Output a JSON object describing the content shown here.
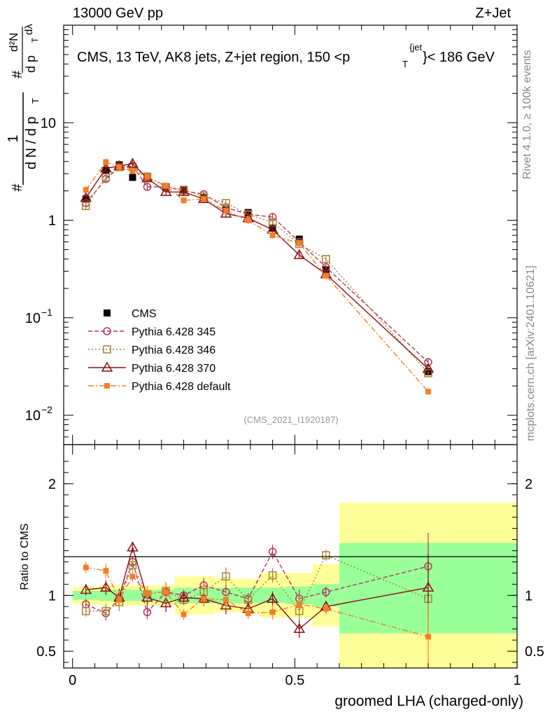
{
  "header": {
    "left": "13000 GeV pp",
    "right": "Z+Jet"
  },
  "side_labels": {
    "rivet": "Rivet 4.1.0, ≥ 100k events",
    "mcplots": "mcplots.cern.ch [arXiv:2401.10621]"
  },
  "watermark": "(CMS_2021_I1920187)",
  "colors": {
    "cms": "#000000",
    "p345": "#b2375b",
    "p346": "#a88433",
    "p370": "#8b0f16",
    "pdef": "#f57d29",
    "band_inner": "#99ff99",
    "band_outer": "#ffff99"
  },
  "chart_data": [
    {
      "type": "scatter",
      "title": "CMS, 13 TeV, AK8 jets, Z+jet region, 150 <p_T^{jet}< 186 GeV",
      "title_parts": {
        "pre": "CMS, 13 TeV, AK8 jets, Z+jet region, 150 <p",
        "sub": "T",
        "sup": "{jet",
        "post": "}< 186 GeV"
      },
      "ylabel": "1/(dN/dp_T) d²N/(dp_T dλ)",
      "ylabel_parts": {
        "hash": "#",
        "one": "1",
        "den": "d N / d p",
        "sub": "T",
        "num": "d²N",
        "den2": "d p",
        "sub2": "T",
        "dl": "dλ"
      },
      "yscale": "log",
      "ylim": [
        0.005,
        100
      ],
      "yticks": [
        {
          "v": 0.01,
          "base": "10",
          "exp": "−2"
        },
        {
          "v": 0.1,
          "base": "10",
          "exp": "−1"
        },
        {
          "v": 1,
          "label": "1"
        },
        {
          "v": 10,
          "label": "10"
        }
      ],
      "xlim": [
        -0.02,
        1.0
      ],
      "x": [
        0.03,
        0.075,
        0.105,
        0.135,
        0.168,
        0.21,
        0.25,
        0.295,
        0.345,
        0.395,
        0.45,
        0.51,
        0.57,
        0.8
      ],
      "series": [
        {
          "name": "CMS",
          "values": [
            1.65,
            3.25,
            3.7,
            2.75,
            2.75,
            2.15,
            2.05,
            1.7,
            1.3,
            1.2,
            0.83,
            0.64,
            0.31,
            0.028
          ]
        },
        {
          "name": "Pythia 6.428 345",
          "values": [
            1.5,
            2.65,
            3.5,
            3.6,
            2.2,
            2.2,
            2.0,
            1.85,
            1.35,
            1.15,
            1.08,
            0.6,
            0.33,
            0.035
          ]
        },
        {
          "name": "Pythia 6.428 346",
          "values": [
            1.4,
            2.75,
            3.5,
            3.5,
            2.8,
            2.2,
            2.05,
            1.75,
            1.5,
            1.15,
            0.95,
            0.57,
            0.4,
            0.027
          ]
        },
        {
          "name": "Pythia 6.428 370",
          "values": [
            1.7,
            3.4,
            3.6,
            3.8,
            2.7,
            1.95,
            1.95,
            1.65,
            1.17,
            1.05,
            0.8,
            0.44,
            0.28,
            0.03
          ]
        },
        {
          "name": "Pythia 6.428 default",
          "values": [
            2.05,
            3.95,
            3.5,
            3.2,
            2.8,
            2.25,
            1.6,
            1.65,
            1.25,
            1.0,
            0.7,
            0.58,
            0.27,
            0.0175
          ]
        }
      ],
      "legend_placement": "lower-left"
    },
    {
      "type": "scatter",
      "ylabel": "Ratio to CMS",
      "xlabel": "groomed LHA (charged-only)",
      "ylim": [
        0.35,
        2.35
      ],
      "yticks": [
        0.5,
        1,
        2
      ],
      "xticks": [
        "0",
        "0.5",
        "1"
      ],
      "xtick_values": [
        0,
        0.5,
        1
      ],
      "xlim": [
        -0.02,
        1.0
      ],
      "x": [
        0.03,
        0.075,
        0.105,
        0.135,
        0.168,
        0.21,
        0.25,
        0.295,
        0.345,
        0.395,
        0.45,
        0.51,
        0.57,
        0.8
      ],
      "band_bins": [
        {
          "x0": 0.0,
          "x1": 0.06,
          "inner": 0.04,
          "outer": 0.08
        },
        {
          "x0": 0.06,
          "x1": 0.09,
          "inner": 0.05,
          "outer": 0.09
        },
        {
          "x0": 0.09,
          "x1": 0.12,
          "inner": 0.05,
          "outer": 0.09
        },
        {
          "x0": 0.12,
          "x1": 0.15,
          "inner": 0.05,
          "outer": 0.09
        },
        {
          "x0": 0.15,
          "x1": 0.19,
          "inner": 0.05,
          "outer": 0.09
        },
        {
          "x0": 0.19,
          "x1": 0.23,
          "inner": 0.05,
          "outer": 0.09
        },
        {
          "x0": 0.23,
          "x1": 0.27,
          "inner": 0.07,
          "outer": 0.17
        },
        {
          "x0": 0.27,
          "x1": 0.32,
          "inner": 0.07,
          "outer": 0.17
        },
        {
          "x0": 0.32,
          "x1": 0.37,
          "inner": 0.07,
          "outer": 0.15
        },
        {
          "x0": 0.37,
          "x1": 0.42,
          "inner": 0.07,
          "outer": 0.15
        },
        {
          "x0": 0.42,
          "x1": 0.48,
          "inner": 0.07,
          "outer": 0.2
        },
        {
          "x0": 0.48,
          "x1": 0.54,
          "inner": 0.08,
          "outer": 0.2
        },
        {
          "x0": 0.54,
          "x1": 0.6,
          "inner": 0.1,
          "outer": 0.28
        },
        {
          "x0": 0.6,
          "x1": 1.0,
          "inner_lo": 0.66,
          "inner_hi": 1.47,
          "outer_lo": 0.35,
          "outer_hi": 1.83
        }
      ],
      "series": [
        {
          "name": "Pythia 6.428 345",
          "values": [
            0.92,
            0.84,
            0.97,
            1.3,
            0.85,
            1.03,
            1.0,
            1.09,
            1.03,
            0.97,
            1.39,
            0.97,
            1.03,
            1.26
          ]
        },
        {
          "name": "Pythia 6.428 346",
          "values": [
            0.86,
            0.86,
            0.94,
            1.27,
            1.01,
            1.04,
            0.96,
            1.03,
            1.17,
            0.96,
            1.18,
            0.86,
            1.36,
            0.97
          ]
        },
        {
          "name": "Pythia 6.428 370",
          "values": [
            1.05,
            1.07,
            0.98,
            1.43,
            0.98,
            0.93,
            0.98,
            0.97,
            0.91,
            0.88,
            0.97,
            0.7,
            0.9,
            1.07
          ]
        },
        {
          "name": "Pythia 6.428 default",
          "values": [
            1.25,
            1.22,
            0.96,
            1.17,
            1.02,
            1.03,
            0.83,
            0.97,
            0.96,
            0.84,
            0.85,
            0.92,
            0.88,
            0.63
          ]
        }
      ]
    }
  ]
}
